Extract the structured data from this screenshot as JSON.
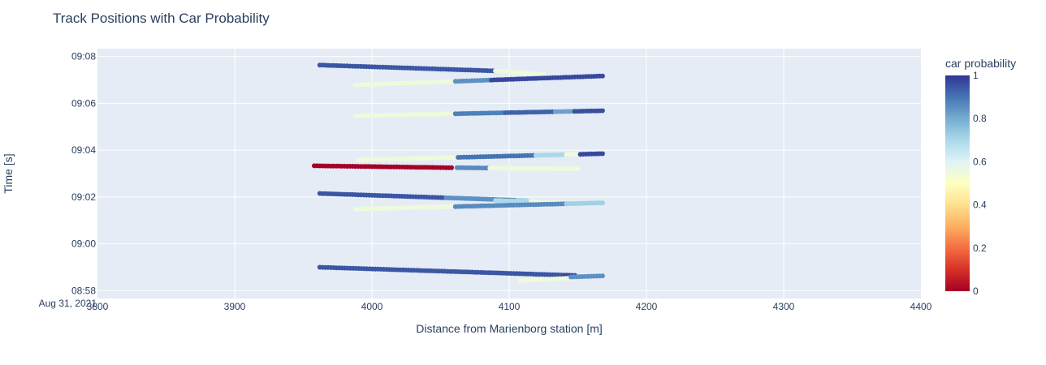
{
  "chart_data": {
    "type": "scatter",
    "title": "Track Positions with Car Probability",
    "xlabel": "Distance from Marienborg station [m]",
    "ylabel": "Time [s]",
    "xlim": [
      3800,
      4400
    ],
    "x_ticks": [
      3800,
      3900,
      4000,
      4100,
      4200,
      4300,
      4400
    ],
    "y_date": "Aug 31, 2021",
    "ylim": [
      "08:57:40",
      "09:08:20"
    ],
    "y_ticks": [
      "08:58",
      "09:00",
      "09:02",
      "09:04",
      "09:06",
      "09:08"
    ],
    "grid": true,
    "colorbar": {
      "title": "car probability",
      "colorscale": "RdYlBu",
      "range": [
        0,
        1
      ],
      "ticks": [
        0,
        0.2,
        0.4,
        0.6,
        0.8,
        1
      ]
    },
    "tracks": [
      {
        "x_start": 3962,
        "x_end": 4090,
        "t_start": "09:07:38",
        "t_end": "09:07:23",
        "segments": [
          [
            0,
            1,
            0.95
          ]
        ]
      },
      {
        "x_start": 4090,
        "x_end": 4125,
        "t_start": "09:07:23",
        "t_end": "09:07:14",
        "segments": [
          [
            0,
            1,
            0.55
          ]
        ]
      },
      {
        "x_start": 3988,
        "x_end": 4168,
        "t_start": "09:06:47",
        "t_end": "09:07:10",
        "segments": [
          [
            0,
            0.4,
            0.55
          ],
          [
            0.4,
            0.55,
            0.85
          ],
          [
            0.55,
            1,
            0.97
          ]
        ]
      },
      {
        "x_start": 3988,
        "x_end": 4168,
        "t_start": "09:05:28",
        "t_end": "09:05:41",
        "segments": [
          [
            0,
            0.4,
            0.55
          ],
          [
            0.4,
            0.6,
            0.88
          ],
          [
            0.6,
            0.8,
            0.93
          ],
          [
            0.8,
            0.88,
            0.82
          ],
          [
            0.88,
            1,
            0.96
          ]
        ]
      },
      {
        "x_start": 3990,
        "x_end": 4168,
        "t_start": "09:03:35",
        "t_end": "09:03:51",
        "segments": [
          [
            0,
            0.4,
            0.55
          ],
          [
            0.4,
            0.72,
            0.9
          ],
          [
            0.72,
            0.85,
            0.7
          ],
          [
            0.85,
            0.9,
            0.55
          ],
          [
            0.9,
            1,
            0.97
          ]
        ]
      },
      {
        "x_start": 3958,
        "x_end": 4058,
        "t_start": "09:03:20",
        "t_end": "09:03:15",
        "segments": [
          [
            0,
            1,
            0.0
          ]
        ]
      },
      {
        "x_start": 4062,
        "x_end": 4150,
        "t_start": "09:03:15",
        "t_end": "09:03:12",
        "segments": [
          [
            0,
            0.25,
            0.86
          ],
          [
            0.25,
            1,
            0.55
          ]
        ]
      },
      {
        "x_start": 3962,
        "x_end": 4112,
        "t_start": "09:02:09",
        "t_end": "09:01:51",
        "segments": [
          [
            0,
            0.6,
            0.95
          ],
          [
            0.6,
            0.95,
            0.85
          ],
          [
            0.95,
            1,
            0.72
          ]
        ]
      },
      {
        "x_start": 4090,
        "x_end": 4140,
        "t_start": "09:01:51",
        "t_end": "09:01:45",
        "segments": [
          [
            0,
            0.5,
            0.7
          ],
          [
            0.5,
            1,
            0.55
          ]
        ]
      },
      {
        "x_start": 3988,
        "x_end": 4168,
        "t_start": "09:01:29",
        "t_end": "09:01:45",
        "segments": [
          [
            0,
            0.4,
            0.55
          ],
          [
            0.4,
            0.85,
            0.86
          ],
          [
            0.85,
            1,
            0.72
          ]
        ]
      },
      {
        "x_start": 3962,
        "x_end": 4148,
        "t_start": "08:59:00",
        "t_end": "08:58:39",
        "segments": [
          [
            0,
            0.95,
            0.95
          ],
          [
            0.95,
            1,
            0.97
          ]
        ]
      },
      {
        "x_start": 4108,
        "x_end": 4145,
        "t_start": "08:58:26",
        "t_end": "08:58:32",
        "segments": [
          [
            0,
            1,
            0.55
          ]
        ]
      },
      {
        "x_start": 4145,
        "x_end": 4168,
        "t_start": "08:58:35",
        "t_end": "08:58:38",
        "segments": [
          [
            0,
            1,
            0.85
          ]
        ]
      }
    ]
  }
}
